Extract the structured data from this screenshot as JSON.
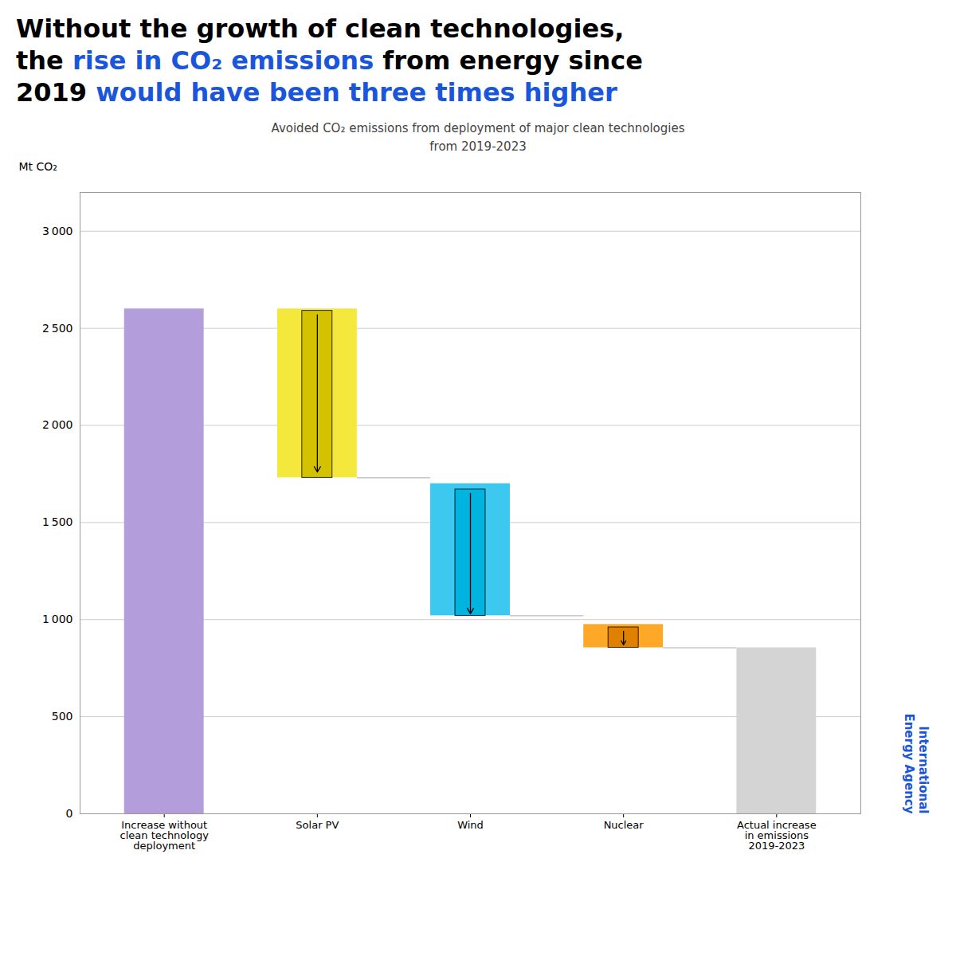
{
  "chart_data": {
    "type": "bar",
    "title": [
      [
        {
          "text": "Without the growth of clean technologies,",
          "color": "#000000"
        }
      ],
      [
        {
          "text": "the ",
          "color": "#000000"
        },
        {
          "text": "rise in CO₂ emissions",
          "color": "#1a56db"
        },
        {
          "text": " from energy since",
          "color": "#000000"
        }
      ],
      [
        {
          "text": "2019 ",
          "color": "#000000"
        },
        {
          "text": "would have been three times higher",
          "color": "#1a56db"
        }
      ]
    ],
    "subtitle": "Avoided CO₂ emissions from deployment of major clean technologies\nfrom 2019-2023",
    "ylabel": "Mt CO₂",
    "categories": [
      "Increase without\nclean technology\ndeployment",
      "Solar PV",
      "Wind",
      "Nuclear",
      "Actual increase\nin emissions\n2019-2023"
    ],
    "bottoms": [
      0,
      1730,
      1020,
      855,
      0
    ],
    "values": [
      2600,
      2600,
      1700,
      975,
      855
    ],
    "colors": [
      "#b39ddb",
      "#f5e83c",
      "#3dc8f0",
      "#ffa726",
      "#d4d4d4"
    ],
    "inner_bars": [
      null,
      {
        "bottom": 1730,
        "top": 2590,
        "color": "#d4c200",
        "arrow_from": 2570,
        "arrow_to": 1760
      },
      {
        "bottom": 1020,
        "top": 1670,
        "color": "#00b4e0",
        "arrow_from": 1650,
        "arrow_to": 1030
      },
      {
        "bottom": 855,
        "top": 960,
        "color": "#e08000",
        "arrow_from": 940,
        "arrow_to": 870
      },
      null
    ],
    "connector_levels": [
      null,
      1730,
      1020,
      855,
      null
    ],
    "ylim": [
      0,
      3200
    ],
    "yticks": [
      0,
      500,
      {
        "value": 1000,
        "label": "1 000"
      },
      {
        "value": 1500,
        "label": "1 500"
      },
      {
        "value": 2000,
        "label": "2 000"
      },
      {
        "value": 2500,
        "label": "2 500"
      },
      {
        "value": 3000,
        "label": "3 000"
      }
    ],
    "grid": true,
    "annotations": [
      {
        "text": "International\nEnergy Agency",
        "color": "#1a56db"
      }
    ]
  }
}
